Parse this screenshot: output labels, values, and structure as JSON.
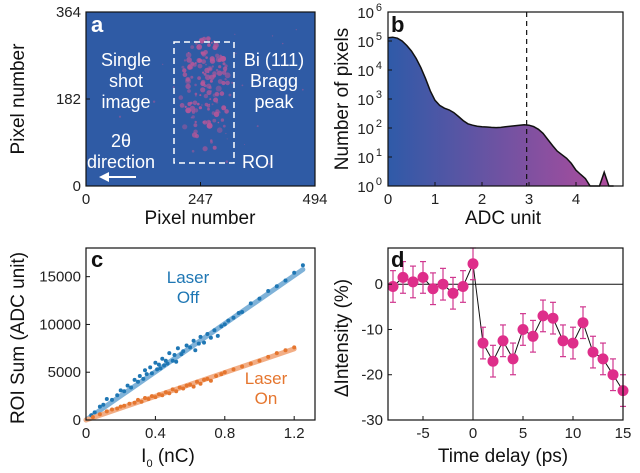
{
  "colors": {
    "detector_bg": "#2F5BA5",
    "speckle": "#B4579A",
    "hist_left": "#2F5AA8",
    "hist_right": "#B04B9C",
    "laser_off": "#1F77B4",
    "laser_off_fit": "#7FB2D8",
    "laser_on": "#E5762F",
    "laser_on_fit": "#F2AE86",
    "pump_probe": "#DE2E8A",
    "pump_probe_error": "#D0378F"
  },
  "panels": {
    "a": {
      "label": "a",
      "text_single": "Single",
      "text_shot": "shot",
      "text_image": "image",
      "text_bi": "Bi (111)",
      "text_bragg": "Bragg",
      "text_peak": "peak",
      "text_2theta": "2θ",
      "text_direction": "direction",
      "text_roi": "ROI",
      "xlabel": "Pixel number",
      "ylabel": "Pixel number",
      "xticks": [
        "0",
        "247",
        "494"
      ],
      "yticks": [
        "0",
        "182",
        "364"
      ]
    },
    "b": {
      "label": "b",
      "xlabel": "ADC unit",
      "ylabel": "Number of pixels",
      "ytick_mantissa": "10"
    },
    "c": {
      "label": "c",
      "xlabel_main": "I",
      "xlabel_sub": "0",
      "xlabel_unit": " (nC)",
      "ylabel": "ROI Sum (ADC unit)",
      "off_line1": "Laser",
      "off_line2": "Off",
      "on_line1": "Laser",
      "on_line2": "On"
    },
    "d": {
      "label": "d",
      "xlabel": "Time delay (ps)",
      "ylabel": "ΔIntensity (%)"
    }
  },
  "chart_data": [
    {
      "panel": "a",
      "type": "heatmap",
      "title": "Single shot image",
      "xlabel": "Pixel number",
      "ylabel": "Pixel number",
      "xlim": [
        0,
        494
      ],
      "ylim": [
        0,
        364
      ],
      "xticks": [
        0,
        247,
        494
      ],
      "yticks": [
        0,
        182,
        364
      ],
      "roi": {
        "x": [
          180,
          320
        ],
        "y": [
          45,
          315
        ]
      },
      "annotations": [
        "Single shot image",
        "Bi (111) Bragg peak",
        "2θ direction",
        "ROI"
      ]
    },
    {
      "panel": "b",
      "type": "area",
      "xlabel": "ADC unit",
      "ylabel": "Number of pixels",
      "yscale": "log",
      "xlim": [
        0,
        5
      ],
      "ylim": [
        1,
        1000000
      ],
      "xticks": [
        0,
        1,
        2,
        3,
        4
      ],
      "yticks_exponent": [
        0,
        1,
        2,
        3,
        4,
        5,
        6
      ],
      "vline_x": 2.95,
      "x": [
        0.0,
        0.1,
        0.2,
        0.3,
        0.4,
        0.5,
        0.6,
        0.7,
        0.8,
        0.9,
        1.0,
        1.1,
        1.2,
        1.3,
        1.4,
        1.5,
        1.6,
        1.7,
        1.8,
        1.9,
        2.0,
        2.1,
        2.2,
        2.3,
        2.4,
        2.5,
        2.6,
        2.7,
        2.8,
        2.9,
        3.0,
        3.1,
        3.2,
        3.3,
        3.4,
        3.5,
        3.6,
        3.7,
        3.8,
        3.9,
        4.0,
        4.1,
        4.2,
        4.3,
        4.4,
        4.5,
        4.6,
        4.7,
        4.8
      ],
      "values": [
        130000,
        135000,
        125000,
        100000,
        70000,
        45000,
        25000,
        12000,
        5000,
        1900,
        900,
        600,
        480,
        420,
        340,
        250,
        180,
        140,
        125,
        115,
        110,
        108,
        105,
        103,
        105,
        110,
        115,
        120,
        125,
        130,
        125,
        112,
        90,
        65,
        40,
        25,
        16,
        12,
        9,
        6,
        3.5,
        2.5,
        1.8,
        1,
        1,
        1,
        3,
        1,
        1
      ]
    },
    {
      "panel": "c",
      "type": "scatter",
      "xlabel": "I0 (nC)",
      "ylabel": "ROI Sum (ADC unit)",
      "xlim": [
        0,
        1.32
      ],
      "ylim": [
        0,
        18000
      ],
      "xticks": [
        0,
        0.4,
        0.8,
        1.2
      ],
      "yticks": [
        0,
        5000,
        10000,
        15000
      ],
      "series": [
        {
          "name": "Laser Off",
          "fit_slope": 12600,
          "x": [
            0.03,
            0.05,
            0.08,
            0.1,
            0.12,
            0.15,
            0.18,
            0.2,
            0.22,
            0.24,
            0.26,
            0.28,
            0.3,
            0.31,
            0.33,
            0.34,
            0.35,
            0.37,
            0.38,
            0.4,
            0.41,
            0.42,
            0.43,
            0.44,
            0.45,
            0.46,
            0.47,
            0.48,
            0.5,
            0.51,
            0.52,
            0.53,
            0.55,
            0.56,
            0.58,
            0.6,
            0.62,
            0.63,
            0.65,
            0.66,
            0.68,
            0.7,
            0.72,
            0.74,
            0.76,
            0.78,
            0.8,
            0.82,
            0.85,
            0.88,
            0.9,
            0.95,
            1.0,
            1.05,
            1.1,
            1.15,
            1.2,
            1.25
          ],
          "values": [
            500,
            800,
            1400,
            1600,
            2200,
            2100,
            2600,
            3100,
            3000,
            3600,
            3400,
            4200,
            4000,
            4600,
            4300,
            5200,
            4800,
            5500,
            4900,
            6000,
            5300,
            5800,
            5400,
            6400,
            5700,
            6200,
            5900,
            7000,
            6200,
            6800,
            6100,
            7500,
            6900,
            7200,
            7800,
            7600,
            8300,
            7300,
            8000,
            8700,
            8100,
            9000,
            8600,
            9400,
            8800,
            9800,
            10000,
            10400,
            10700,
            11200,
            11300,
            12200,
            12700,
            13500,
            14000,
            14600,
            15400,
            16200
          ]
        },
        {
          "name": "Laser On",
          "fit_slope": 6200,
          "x": [
            0.04,
            0.08,
            0.12,
            0.15,
            0.18,
            0.2,
            0.22,
            0.25,
            0.28,
            0.3,
            0.32,
            0.34,
            0.36,
            0.38,
            0.4,
            0.42,
            0.44,
            0.46,
            0.48,
            0.5,
            0.52,
            0.54,
            0.56,
            0.58,
            0.6,
            0.62,
            0.64,
            0.66,
            0.68,
            0.7,
            0.72,
            0.75,
            0.78,
            0.8,
            0.85,
            0.9,
            0.95,
            1.0,
            1.05,
            1.1,
            1.15,
            1.2
          ],
          "values": [
            300,
            600,
            900,
            1100,
            1200,
            1400,
            1500,
            1700,
            1800,
            2100,
            1900,
            2300,
            2200,
            2500,
            2400,
            2700,
            2600,
            2900,
            2800,
            3200,
            3000,
            3400,
            3300,
            3600,
            3700,
            3500,
            4000,
            3800,
            4200,
            4300,
            4100,
            4600,
            4800,
            5000,
            5300,
            5600,
            5900,
            6200,
            6600,
            7000,
            7300,
            7600
          ]
        }
      ]
    },
    {
      "panel": "d",
      "type": "line",
      "xlabel": "Time delay (ps)",
      "ylabel": "ΔIntensity (%)",
      "xlim": [
        -8.5,
        15
      ],
      "ylim": [
        -30,
        8
      ],
      "xticks": [
        -5,
        0,
        5,
        10,
        15
      ],
      "yticks": [
        -30,
        -20,
        -10,
        0
      ],
      "x": [
        -8,
        -7,
        -6,
        -5,
        -4,
        -3,
        -2,
        -1,
        0,
        1,
        2,
        3,
        4,
        5,
        6,
        7,
        8,
        9,
        10,
        11,
        12,
        13,
        14,
        15
      ],
      "values": [
        -0.5,
        1.5,
        0.5,
        1.5,
        -1.0,
        0.0,
        -2.0,
        -0.5,
        4.5,
        -13.0,
        -17.0,
        -12.5,
        -16.5,
        -10.0,
        -11.5,
        -7.0,
        -7.5,
        -12.5,
        -13.0,
        -8.5,
        -15.0,
        -16.5,
        -20.0,
        -23.5
      ],
      "errors": [
        3.5,
        3.5,
        3.5,
        3.5,
        3.5,
        3.5,
        3.5,
        3.5,
        3.5,
        3.5,
        3.5,
        3.5,
        3.5,
        3.5,
        3.5,
        3.5,
        3.5,
        3.5,
        3.5,
        3.5,
        3.5,
        3.5,
        3.5,
        3.5
      ]
    }
  ]
}
